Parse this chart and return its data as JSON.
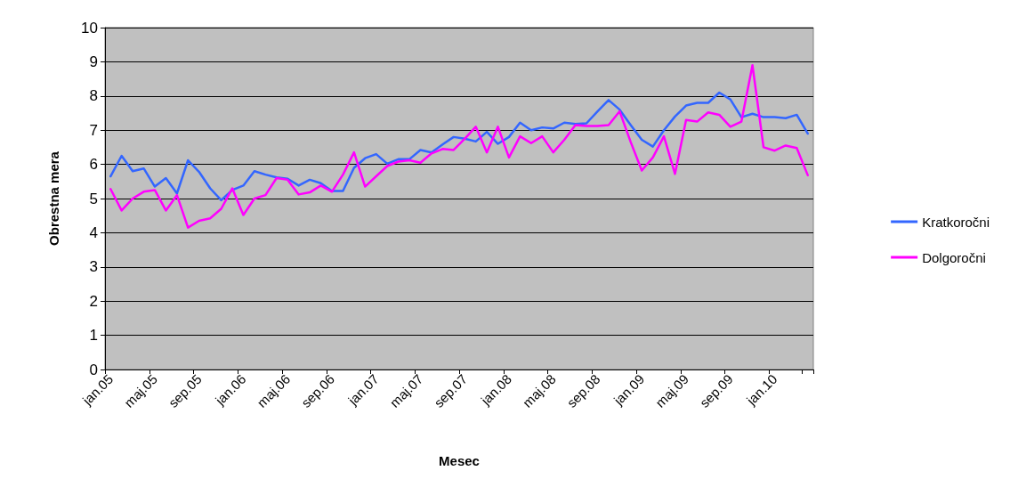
{
  "chart_data": {
    "type": "line",
    "xlabel": "Mesec",
    "ylabel": "Obrestna mera",
    "categories": [
      "jan.05",
      null,
      null,
      null,
      "maj.05",
      null,
      null,
      null,
      "sep.05",
      null,
      null,
      null,
      "jan.06",
      null,
      null,
      null,
      "maj.06",
      null,
      null,
      null,
      "sep.06",
      null,
      null,
      null,
      "jan.07",
      null,
      null,
      null,
      "maj.07",
      null,
      null,
      null,
      "sep.07",
      null,
      null,
      null,
      "jan.08",
      null,
      null,
      null,
      "maj.08",
      null,
      null,
      null,
      "sep.08",
      null,
      null,
      null,
      "jan.09",
      null,
      null,
      null,
      "maj.09",
      null,
      null,
      null,
      "sep.09",
      null,
      null,
      null,
      "jan.10",
      null,
      null,
      null
    ],
    "series": [
      {
        "name": "Kratkoročni",
        "color": "#3366ff",
        "values": [
          5.65,
          6.25,
          5.8,
          5.88,
          5.35,
          5.6,
          5.15,
          6.12,
          5.78,
          5.3,
          4.95,
          5.25,
          5.38,
          5.8,
          5.7,
          5.62,
          5.58,
          5.38,
          5.55,
          5.45,
          5.22,
          5.22,
          5.9,
          6.18,
          6.3,
          6.02,
          6.15,
          6.15,
          6.42,
          6.35,
          6.58,
          6.8,
          6.75,
          6.67,
          6.95,
          6.6,
          6.8,
          7.22,
          7.0,
          7.08,
          7.05,
          7.22,
          7.18,
          7.2,
          7.55,
          7.88,
          7.6,
          7.15,
          6.72,
          6.52,
          7.0,
          7.4,
          7.72,
          7.8,
          7.8,
          8.1,
          7.9,
          7.38,
          7.48,
          7.38,
          7.38,
          7.35,
          7.45,
          6.9
        ]
      },
      {
        "name": "Dolgoročni",
        "color": "#ff00ff",
        "values": [
          5.28,
          4.65,
          5.0,
          5.2,
          5.25,
          4.65,
          5.1,
          4.15,
          4.35,
          4.42,
          4.7,
          5.3,
          4.52,
          5.0,
          5.1,
          5.6,
          5.55,
          5.12,
          5.18,
          5.38,
          5.2,
          5.7,
          6.35,
          5.35,
          5.65,
          5.95,
          6.08,
          6.12,
          6.05,
          6.32,
          6.45,
          6.42,
          6.75,
          7.1,
          6.35,
          7.1,
          6.2,
          6.82,
          6.62,
          6.82,
          6.35,
          6.72,
          7.15,
          7.12,
          7.12,
          7.15,
          7.55,
          6.65,
          5.82,
          6.2,
          6.82,
          5.72,
          7.3,
          7.25,
          7.52,
          7.45,
          7.1,
          7.25,
          8.9,
          6.5,
          6.4,
          6.55,
          6.48,
          5.68
        ]
      }
    ],
    "ylim": [
      0,
      10
    ],
    "yticks": [
      0,
      1,
      2,
      3,
      4,
      5,
      6,
      7,
      8,
      9,
      10
    ],
    "grid": "y",
    "legend": "right",
    "marker": "none",
    "line_style": "solid"
  }
}
